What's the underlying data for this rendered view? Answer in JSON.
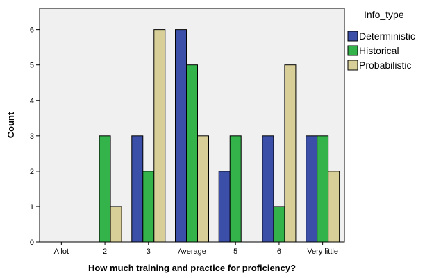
{
  "chart_data": {
    "type": "bar",
    "xlabel": "How much training and practice for proficiency?",
    "ylabel": "Count",
    "categories": [
      "A lot",
      "2",
      "3",
      "Average",
      "5",
      "6",
      "Very little"
    ],
    "ylim": [
      0,
      6.6
    ],
    "yticks": [
      0,
      1,
      2,
      3,
      4,
      5,
      6
    ],
    "grid": false,
    "legend": {
      "title": "Info_type",
      "position": "top-right-outside"
    },
    "series": [
      {
        "name": "Deterministic",
        "color": "#3b4fa8",
        "values": [
          0,
          0,
          3,
          6,
          2,
          3,
          3
        ]
      },
      {
        "name": "Historical",
        "color": "#33b34a",
        "values": [
          0,
          3,
          2,
          5,
          3,
          1,
          3
        ]
      },
      {
        "name": "Probabilistic",
        "color": "#d8cf98",
        "values": [
          0,
          1,
          6,
          3,
          0,
          5,
          2
        ]
      }
    ],
    "plot_background": "#f0f0f0"
  }
}
